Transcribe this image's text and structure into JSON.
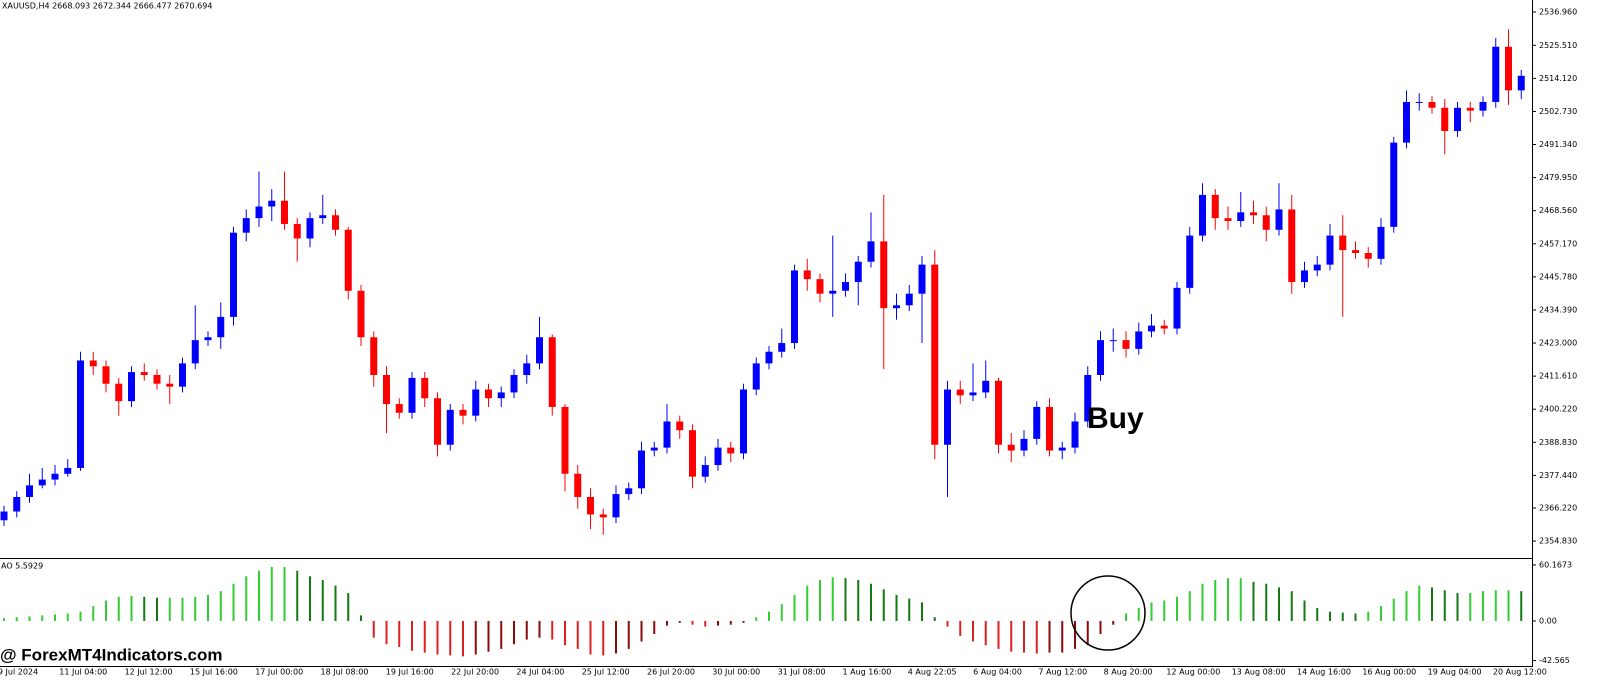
{
  "header": "XAUUSD,H4  2668.093 2672.344 2666.477 2670.694",
  "watermark": "@ ForexMT4Indicators.com",
  "chart_data": [
    {
      "type": "candlestick",
      "annotation": "Buy",
      "up_color": "#0000ff",
      "down_color": "#ff0000",
      "ylim": [
        2349.0,
        2541.1
      ],
      "yticks": [
        {
          "value": 2536.96,
          "label": "2536.960"
        },
        {
          "value": 2525.51,
          "label": "2525.510"
        },
        {
          "value": 2514.12,
          "label": "2514.120"
        },
        {
          "value": 2502.73,
          "label": "2502.730"
        },
        {
          "value": 2491.34,
          "label": "2491.340"
        },
        {
          "value": 2479.95,
          "label": "2479.950"
        },
        {
          "value": 2468.56,
          "label": "2468.560"
        },
        {
          "value": 2457.17,
          "label": "2457.170"
        },
        {
          "value": 2445.78,
          "label": "2445.780"
        },
        {
          "value": 2434.39,
          "label": "2434.390"
        },
        {
          "value": 2423,
          "label": "2423.000"
        },
        {
          "value": 2411.61,
          "label": "2411.610"
        },
        {
          "value": 2400.22,
          "label": "2400.220"
        },
        {
          "value": 2388.83,
          "label": "2388.830"
        },
        {
          "value": 2377.44,
          "label": "2377.440"
        },
        {
          "value": 2366.22,
          "label": "2366.220"
        },
        {
          "value": 2354.83,
          "label": "2354.830"
        }
      ],
      "x_labels": [
        "9 Jul 2024",
        "11 Jul 04:00",
        "12 Jul 12:00",
        "15 Jul 16:00",
        "17 Jul 00:00",
        "18 Jul 08:00",
        "19 Jul 16:00",
        "22 Jul 20:00",
        "24 Jul 04:00",
        "25 Jul 12:00",
        "26 Jul 20:00",
        "30 Jul 00:00",
        "31 Jul 08:00",
        "1 Aug 16:00",
        "4 Aug 22:05",
        "6 Aug 04:00",
        "7 Aug 12:00",
        "8 Aug 20:00",
        "12 Aug 00:00",
        "13 Aug 08:00",
        "14 Aug 16:00",
        "16 Aug 00:00",
        "19 Aug 04:00",
        "20 Aug 12:00"
      ],
      "ohlc": [
        [
          2362,
          2367,
          2360,
          2365
        ],
        [
          2365,
          2372,
          2363,
          2370
        ],
        [
          2370,
          2378,
          2368,
          2374
        ],
        [
          2374,
          2380,
          2373,
          2376
        ],
        [
          2376,
          2381,
          2374,
          2378
        ],
        [
          2378,
          2383,
          2377,
          2380
        ],
        [
          2380,
          2420,
          2379,
          2417
        ],
        [
          2417,
          2420,
          2412,
          2415
        ],
        [
          2415,
          2417,
          2406,
          2409
        ],
        [
          2409,
          2411,
          2398,
          2403
        ],
        [
          2403,
          2415,
          2401,
          2413
        ],
        [
          2413,
          2416,
          2410,
          2412
        ],
        [
          2412,
          2414,
          2407,
          2409
        ],
        [
          2409,
          2412,
          2402,
          2408
        ],
        [
          2408,
          2418,
          2406,
          2416
        ],
        [
          2416,
          2436,
          2414,
          2424
        ],
        [
          2424,
          2427,
          2422,
          2425
        ],
        [
          2425,
          2437,
          2421,
          2432
        ],
        [
          2432,
          2463,
          2429,
          2461
        ],
        [
          2461,
          2469,
          2458,
          2466
        ],
        [
          2466,
          2482,
          2463,
          2470
        ],
        [
          2470,
          2476,
          2465,
          2472
        ],
        [
          2472,
          2482,
          2462,
          2464
        ],
        [
          2464,
          2466,
          2451,
          2459
        ],
        [
          2459,
          2468,
          2456,
          2466
        ],
        [
          2466,
          2474,
          2464,
          2467
        ],
        [
          2467,
          2469,
          2460,
          2462
        ],
        [
          2462,
          2463,
          2438,
          2441
        ],
        [
          2441,
          2443,
          2422,
          2425
        ],
        [
          2425,
          2427,
          2408,
          2412
        ],
        [
          2412,
          2415,
          2392,
          2402
        ],
        [
          2402,
          2404,
          2397,
          2399
        ],
        [
          2399,
          2413,
          2397,
          2411
        ],
        [
          2411,
          2413,
          2401,
          2404
        ],
        [
          2404,
          2406,
          2384,
          2388
        ],
        [
          2388,
          2402,
          2386,
          2400
        ],
        [
          2400,
          2402,
          2395,
          2398
        ],
        [
          2398,
          2410,
          2396,
          2407
        ],
        [
          2407,
          2409,
          2401,
          2404
        ],
        [
          2404,
          2408,
          2401,
          2406
        ],
        [
          2406,
          2414,
          2404,
          2412
        ],
        [
          2412,
          2419,
          2409,
          2416
        ],
        [
          2416,
          2432,
          2414,
          2425
        ],
        [
          2425,
          2426,
          2398,
          2401
        ],
        [
          2401,
          2402,
          2372,
          2378
        ],
        [
          2378,
          2381,
          2366,
          2370
        ],
        [
          2370,
          2373,
          2359,
          2364
        ],
        [
          2364,
          2366,
          2357,
          2363
        ],
        [
          2363,
          2374,
          2361,
          2371
        ],
        [
          2371,
          2375,
          2369,
          2373
        ],
        [
          2373,
          2389,
          2371,
          2386
        ],
        [
          2386,
          2389,
          2384,
          2387
        ],
        [
          2387,
          2402,
          2385,
          2396
        ],
        [
          2396,
          2398,
          2390,
          2393
        ],
        [
          2393,
          2395,
          2373,
          2377
        ],
        [
          2377,
          2384,
          2375,
          2381
        ],
        [
          2381,
          2390,
          2379,
          2387
        ],
        [
          2387,
          2389,
          2382,
          2385
        ],
        [
          2385,
          2409,
          2383,
          2407
        ],
        [
          2407,
          2418,
          2405,
          2416
        ],
        [
          2416,
          2422,
          2414,
          2420
        ],
        [
          2420,
          2428,
          2418,
          2423
        ],
        [
          2423,
          2450,
          2421,
          2448
        ],
        [
          2448,
          2452,
          2441,
          2445
        ],
        [
          2445,
          2447,
          2437,
          2440
        ],
        [
          2440,
          2460,
          2432,
          2441
        ],
        [
          2441,
          2447,
          2439,
          2444
        ],
        [
          2444,
          2453,
          2436,
          2451
        ],
        [
          2451,
          2468,
          2449,
          2458
        ],
        [
          2458,
          2474,
          2414,
          2435
        ],
        [
          2435,
          2440,
          2431,
          2436
        ],
        [
          2436,
          2443,
          2434,
          2440
        ],
        [
          2440,
          2453,
          2423,
          2450
        ],
        [
          2450,
          2455,
          2383,
          2388
        ],
        [
          2388,
          2410,
          2370,
          2407
        ],
        [
          2407,
          2410,
          2402,
          2405
        ],
        [
          2405,
          2416,
          2403,
          2406
        ],
        [
          2406,
          2417,
          2404,
          2410
        ],
        [
          2410,
          2411,
          2385,
          2388
        ],
        [
          2388,
          2392,
          2382,
          2386
        ],
        [
          2386,
          2393,
          2384,
          2390
        ],
        [
          2390,
          2403,
          2388,
          2401
        ],
        [
          2401,
          2404,
          2384,
          2386
        ],
        [
          2386,
          2389,
          2383,
          2387
        ],
        [
          2387,
          2399,
          2385,
          2396
        ],
        [
          2396,
          2415,
          2394,
          2412
        ],
        [
          2412,
          2427,
          2410,
          2424
        ],
        [
          2424,
          2428,
          2420,
          2424
        ],
        [
          2424,
          2427,
          2418,
          2421
        ],
        [
          2421,
          2430,
          2419,
          2427
        ],
        [
          2427,
          2433,
          2425,
          2429
        ],
        [
          2429,
          2431,
          2426,
          2428
        ],
        [
          2428,
          2444,
          2426,
          2442
        ],
        [
          2442,
          2463,
          2440,
          2460
        ],
        [
          2460,
          2478,
          2458,
          2474
        ],
        [
          2474,
          2476,
          2462,
          2466
        ],
        [
          2466,
          2470,
          2462,
          2465
        ],
        [
          2465,
          2475,
          2463,
          2468
        ],
        [
          2468,
          2472,
          2464,
          2467
        ],
        [
          2467,
          2470,
          2458,
          2462
        ],
        [
          2462,
          2478,
          2460,
          2469
        ],
        [
          2469,
          2474,
          2440,
          2444
        ],
        [
          2444,
          2451,
          2442,
          2448
        ],
        [
          2448,
          2453,
          2446,
          2450
        ],
        [
          2450,
          2464,
          2448,
          2460
        ],
        [
          2460,
          2467,
          2432,
          2455
        ],
        [
          2455,
          2458,
          2452,
          2454
        ],
        [
          2454,
          2456,
          2449,
          2452
        ],
        [
          2452,
          2466,
          2450,
          2463
        ],
        [
          2463,
          2494,
          2461,
          2492
        ],
        [
          2492,
          2510,
          2490,
          2506
        ],
        [
          2506,
          2509,
          2503,
          2506
        ],
        [
          2506,
          2508,
          2502,
          2504
        ],
        [
          2504,
          2507,
          2488,
          2496
        ],
        [
          2496,
          2506,
          2494,
          2504
        ],
        [
          2504,
          2506,
          2499,
          2503
        ],
        [
          2503,
          2508,
          2501,
          2506
        ],
        [
          2506,
          2528,
          2504,
          2525
        ],
        [
          2525,
          2531,
          2505,
          2510
        ],
        [
          2510,
          2517,
          2507,
          2515
        ]
      ]
    },
    {
      "type": "bar",
      "title": "AO 5.5929",
      "positive_rising_color": "#33cc33",
      "positive_falling_color": "#137a13",
      "negative_falling_color": "#e02020",
      "negative_rising_color": "#8b0a0a",
      "ylim": [
        -47.3,
        65.5
      ],
      "yticks": [
        60.1673,
        {
          "value": 0,
          "label": "0.00"
        },
        -42.565
      ],
      "values": [
        3,
        4,
        5,
        6,
        7,
        8,
        10,
        16,
        22,
        26,
        27,
        26,
        25,
        25,
        25,
        26,
        28,
        32,
        40,
        48,
        54,
        58,
        58,
        54,
        48,
        44,
        38,
        30,
        6,
        -18,
        -25,
        -28,
        -32,
        -34,
        -36,
        -37,
        -38,
        -36,
        -33,
        -30,
        -25,
        -20,
        -18,
        -20,
        -26,
        -30,
        -36,
        -37,
        -35,
        -30,
        -22,
        -14,
        -5,
        -2,
        -4,
        -6,
        -5,
        -4,
        -2,
        4,
        10,
        18,
        28,
        38,
        44,
        47,
        46,
        44,
        40,
        34,
        28,
        24,
        20,
        4,
        -6,
        -16,
        -22,
        -26,
        -30,
        -33,
        -34,
        -35,
        -34,
        -34,
        -30,
        -26,
        -14,
        -4,
        8,
        14,
        20,
        22,
        26,
        32,
        40,
        44,
        46,
        46,
        42,
        40,
        36,
        32,
        22,
        14,
        10,
        9,
        8,
        10,
        16,
        24,
        32,
        38,
        36,
        33,
        30,
        30,
        32,
        33,
        33,
        32
      ]
    }
  ]
}
